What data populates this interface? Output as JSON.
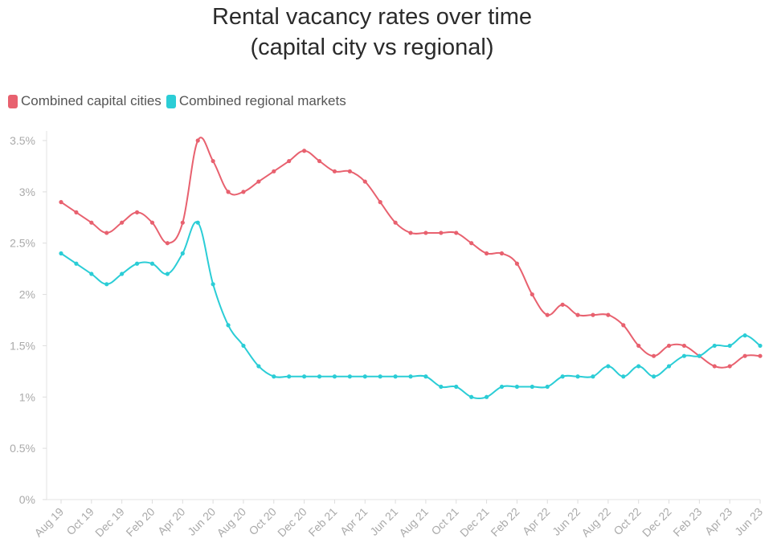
{
  "chart_data": {
    "type": "line",
    "title_line1": "Rental vacancy rates over time",
    "title_line2": "(capital city vs regional)",
    "x": [
      "Aug 19",
      "Sep 19",
      "Oct 19",
      "Nov 19",
      "Dec 19",
      "Jan 20",
      "Feb 20",
      "Mar 20",
      "Apr 20",
      "May 20",
      "Jun 20",
      "Jul 20",
      "Aug 20",
      "Sep 20",
      "Oct 20",
      "Nov 20",
      "Dec 20",
      "Jan 21",
      "Feb 21",
      "Mar 21",
      "Apr 21",
      "May 21",
      "Jun 21",
      "Jul 21",
      "Aug 21",
      "Sep 21",
      "Oct 21",
      "Nov 21",
      "Dec 21",
      "Jan 22",
      "Feb 22",
      "Mar 22",
      "Apr 22",
      "May 22",
      "Jun 22",
      "Jul 22",
      "Aug 22",
      "Sep 22",
      "Oct 22",
      "Nov 22",
      "Dec 22",
      "Jan 23",
      "Feb 23",
      "Mar 23",
      "Apr 23",
      "May 23",
      "Jun 23"
    ],
    "x_tick_labels": [
      "Aug 19",
      "Oct 19",
      "Dec 19",
      "Feb 20",
      "Apr 20",
      "Jun 20",
      "Aug 20",
      "Oct 20",
      "Dec 20",
      "Feb 21",
      "Apr 21",
      "Jun 21",
      "Aug 21",
      "Oct 21",
      "Dec 21",
      "Feb 22",
      "Apr 22",
      "Jun 22",
      "Aug 22",
      "Oct 22",
      "Dec 22",
      "Feb 23",
      "Apr 23",
      "Jun 23"
    ],
    "y_tick_labels": [
      "0%",
      "0.5%",
      "1%",
      "1.5%",
      "2%",
      "2.5%",
      "3%",
      "3.5%"
    ],
    "ylim": [
      0,
      3.5
    ],
    "legend_position": "top-left",
    "series": [
      {
        "name": "Combined capital cities",
        "color": "#e8616f",
        "values": [
          2.9,
          2.8,
          2.7,
          2.6,
          2.7,
          2.8,
          2.7,
          2.5,
          2.7,
          3.5,
          3.3,
          3.0,
          3.0,
          3.1,
          3.2,
          3.3,
          3.4,
          3.3,
          3.2,
          3.2,
          3.1,
          2.9,
          2.7,
          2.6,
          2.6,
          2.6,
          2.6,
          2.5,
          2.4,
          2.4,
          2.3,
          2.0,
          1.8,
          1.9,
          1.8,
          1.8,
          1.8,
          1.7,
          1.5,
          1.4,
          1.5,
          1.5,
          1.4,
          1.3,
          1.3,
          1.4,
          1.4
        ]
      },
      {
        "name": "Combined regional markets",
        "color": "#2bcdd6",
        "values": [
          2.4,
          2.3,
          2.2,
          2.1,
          2.2,
          2.3,
          2.3,
          2.2,
          2.4,
          2.7,
          2.1,
          1.7,
          1.5,
          1.3,
          1.2,
          1.2,
          1.2,
          1.2,
          1.2,
          1.2,
          1.2,
          1.2,
          1.2,
          1.2,
          1.2,
          1.1,
          1.1,
          1.0,
          1.0,
          1.1,
          1.1,
          1.1,
          1.1,
          1.2,
          1.2,
          1.2,
          1.3,
          1.2,
          1.3,
          1.2,
          1.3,
          1.4,
          1.4,
          1.5,
          1.5,
          1.6,
          1.5
        ]
      }
    ]
  }
}
